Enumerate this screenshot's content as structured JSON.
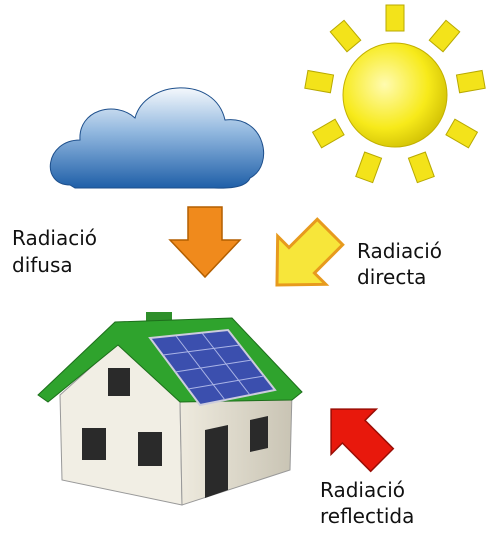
{
  "labels": {
    "diffuse": [
      "Radiació",
      "difusa"
    ],
    "direct": [
      "Radiació",
      "directa"
    ],
    "reflected": [
      "Radiació",
      "reflectida"
    ]
  }
}
